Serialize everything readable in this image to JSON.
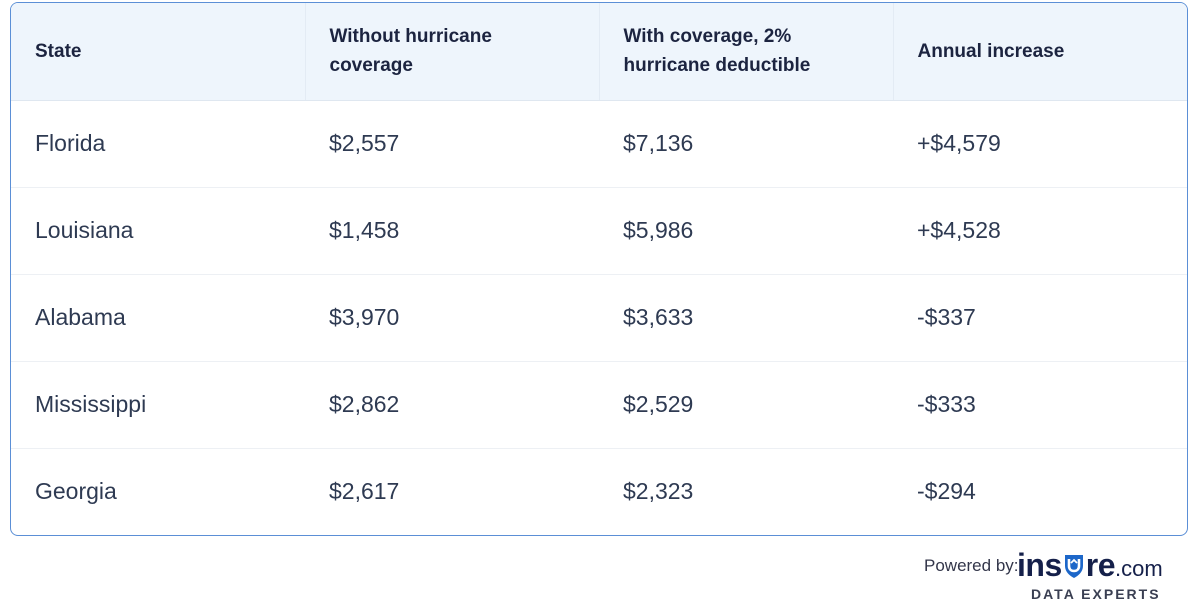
{
  "table": {
    "headers": [
      "State",
      "Without hurricane coverage",
      "With coverage, 2% hurricane deductible",
      "Annual increase"
    ],
    "rows": [
      [
        "Florida",
        "$2,557",
        "$7,136",
        "+$4,579"
      ],
      [
        "Louisiana",
        "$1,458",
        "$5,986",
        "+$4,528"
      ],
      [
        "Alabama",
        "$3,970",
        "$3,633",
        "-$337"
      ],
      [
        "Mississippi",
        "$2,862",
        "$2,529",
        "-$333"
      ],
      [
        "Georgia",
        "$2,617",
        "$2,323",
        "-$294"
      ]
    ]
  },
  "footer": {
    "powered_label": "Powered by:",
    "brand_prefix": "ins",
    "brand_shield_letter": "u",
    "brand_suffix": "re",
    "brand_tld": ".com",
    "tagline": "DATA EXPERTS"
  },
  "colors": {
    "header_bg": "#eef5fc",
    "border": "#5b8fd6",
    "brand": "#15204a",
    "shield": "#1d67c9"
  }
}
